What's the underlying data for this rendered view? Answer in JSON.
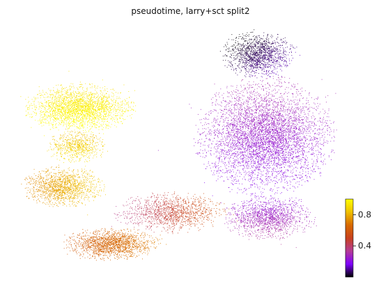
{
  "chart_data": {
    "type": "scatter",
    "title": "pseudotime, larry+sct split2",
    "xlabel": "",
    "ylabel": "",
    "axes_visible": false,
    "colormap": "gnuplot",
    "colors": {
      "stops": [
        "#000000",
        "#7f00ff",
        "#b43c96",
        "#c8411e",
        "#d86a00",
        "#f0c000",
        "#ffff00"
      ]
    },
    "colorbar": {
      "range": [
        0.0,
        1.0
      ],
      "ticks": [
        0.4,
        0.8
      ],
      "tick_labels": [
        "0.4",
        "0.8"
      ],
      "placement": "lower-right"
    },
    "regions": [
      {
        "name": "top-left yellow cluster",
        "pseudotime_range": [
          0.92,
          1.0
        ]
      },
      {
        "name": "left neck",
        "pseudotime_range": [
          0.82,
          0.92
        ]
      },
      {
        "name": "left orange cluster",
        "pseudotime_range": [
          0.72,
          0.86
        ]
      },
      {
        "name": "bottom red cluster",
        "pseudotime_range": [
          0.6,
          0.7
        ]
      },
      {
        "name": "bridge",
        "pseudotime_range": [
          0.35,
          0.6
        ]
      },
      {
        "name": "right purple mass",
        "pseudotime_range": [
          0.2,
          0.3
        ]
      },
      {
        "name": "right lower lobe",
        "pseudotime_range": [
          0.22,
          0.32
        ]
      },
      {
        "name": "top-right dark tip",
        "pseudotime_range": [
          0.0,
          0.12
        ]
      }
    ]
  }
}
